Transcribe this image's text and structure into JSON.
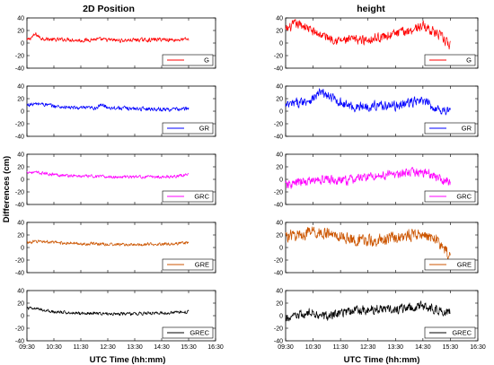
{
  "figure": {
    "columns": [
      "2D Position",
      "height"
    ],
    "ylabel": "Differences (cm)",
    "xlabel": "UTC Time (hh:mm)"
  },
  "chart_data": [
    {
      "type": "line",
      "panel": "2D Position",
      "legend": "G",
      "color": "#ff0000",
      "ylim": [
        -40,
        40
      ],
      "yticks": [
        40,
        20,
        0,
        -20,
        -40
      ],
      "x_ticks": [
        "09:30",
        "10:30",
        "11:30",
        "12:30",
        "13:30",
        "14:30",
        "15:30",
        "16:30"
      ],
      "x_range": [
        "09:30",
        "16:30"
      ],
      "data_range": [
        "09:30",
        "15:30"
      ],
      "approx_mean_cm": 5,
      "approx_amplitude_cm": 5,
      "series": [
        {
          "x": [
            "09:30",
            "09:50",
            "10:00",
            "10:30",
            "11:00",
            "11:30",
            "12:00",
            "12:30",
            "13:00",
            "13:30",
            "14:00",
            "14:30",
            "15:00",
            "15:30"
          ],
          "y": [
            4,
            14,
            8,
            5,
            6,
            4,
            6,
            5,
            4,
            5,
            5,
            6,
            5,
            6
          ]
        }
      ]
    },
    {
      "type": "line",
      "panel": "height",
      "legend": "G",
      "color": "#ff0000",
      "ylim": [
        -40,
        40
      ],
      "yticks": [
        40,
        20,
        0,
        -20,
        -40
      ],
      "x_ticks": [
        "09:30",
        "10:30",
        "11:30",
        "12:30",
        "13:30",
        "14:30",
        "15:30",
        "16:30"
      ],
      "x_range": [
        "09:30",
        "16:30"
      ],
      "data_range": [
        "09:30",
        "15:30"
      ],
      "approx_mean_cm": 10,
      "approx_amplitude_cm": 12,
      "series": [
        {
          "x": [
            "09:30",
            "09:50",
            "10:10",
            "10:30",
            "11:00",
            "11:30",
            "12:00",
            "12:30",
            "13:00",
            "13:30",
            "14:00",
            "14:30",
            "14:50",
            "15:10",
            "15:30"
          ],
          "y": [
            20,
            30,
            28,
            18,
            10,
            4,
            5,
            6,
            10,
            15,
            20,
            28,
            20,
            10,
            -5
          ]
        }
      ]
    },
    {
      "type": "line",
      "panel": "2D Position",
      "legend": "GR",
      "color": "#0000ff",
      "ylim": [
        -40,
        40
      ],
      "yticks": [
        40,
        20,
        0,
        -20,
        -40
      ],
      "x_ticks": [
        "09:30",
        "10:30",
        "11:30",
        "12:30",
        "13:30",
        "14:30",
        "15:30",
        "16:30"
      ],
      "x_range": [
        "09:30",
        "16:30"
      ],
      "data_range": [
        "09:30",
        "15:30"
      ],
      "approx_mean_cm": 5,
      "approx_amplitude_cm": 5,
      "series": [
        {
          "x": [
            "09:30",
            "10:00",
            "10:30",
            "11:00",
            "11:30",
            "12:00",
            "12:20",
            "12:30",
            "13:00",
            "13:30",
            "14:00",
            "14:30",
            "15:00",
            "15:30"
          ],
          "y": [
            10,
            12,
            8,
            6,
            5,
            5,
            10,
            6,
            5,
            4,
            4,
            3,
            3,
            4
          ]
        }
      ]
    },
    {
      "type": "line",
      "panel": "height",
      "legend": "GR",
      "color": "#0000ff",
      "ylim": [
        -40,
        40
      ],
      "yticks": [
        40,
        20,
        0,
        -20,
        -40
      ],
      "x_ticks": [
        "09:30",
        "10:30",
        "11:30",
        "12:30",
        "13:30",
        "14:30",
        "15:30",
        "16:30"
      ],
      "x_range": [
        "09:30",
        "16:30"
      ],
      "data_range": [
        "09:30",
        "15:30"
      ],
      "approx_mean_cm": 12,
      "approx_amplitude_cm": 12,
      "series": [
        {
          "x": [
            "09:30",
            "10:00",
            "10:30",
            "10:45",
            "11:00",
            "11:30",
            "12:00",
            "12:30",
            "13:00",
            "13:30",
            "14:00",
            "14:30",
            "15:00",
            "15:30"
          ],
          "y": [
            8,
            14,
            20,
            30,
            25,
            14,
            6,
            8,
            10,
            8,
            14,
            16,
            4,
            0
          ]
        }
      ]
    },
    {
      "type": "line",
      "panel": "2D Position",
      "legend": "GRC",
      "color": "#ff00ff",
      "ylim": [
        -40,
        40
      ],
      "yticks": [
        40,
        20,
        0,
        -20,
        -40
      ],
      "x_ticks": [
        "09:30",
        "10:30",
        "11:30",
        "12:30",
        "13:30",
        "14:30",
        "15:30",
        "16:30"
      ],
      "x_range": [
        "09:30",
        "16:30"
      ],
      "data_range": [
        "09:30",
        "15:30"
      ],
      "approx_mean_cm": 5,
      "approx_amplitude_cm": 4,
      "series": [
        {
          "x": [
            "09:30",
            "10:00",
            "10:30",
            "11:00",
            "11:30",
            "12:00",
            "12:30",
            "13:00",
            "13:30",
            "14:00",
            "14:30",
            "15:00",
            "15:30"
          ],
          "y": [
            12,
            10,
            8,
            6,
            5,
            5,
            4,
            4,
            4,
            4,
            4,
            5,
            8
          ]
        }
      ]
    },
    {
      "type": "line",
      "panel": "height",
      "legend": "GRC",
      "color": "#ff00ff",
      "ylim": [
        -40,
        40
      ],
      "yticks": [
        40,
        20,
        0,
        -20,
        -40
      ],
      "x_ticks": [
        "09:30",
        "10:30",
        "11:30",
        "12:30",
        "13:30",
        "14:30",
        "15:30",
        "16:30"
      ],
      "x_range": [
        "09:30",
        "16:30"
      ],
      "data_range": [
        "09:30",
        "15:30"
      ],
      "approx_mean_cm": 0,
      "approx_amplitude_cm": 12,
      "series": [
        {
          "x": [
            "09:30",
            "10:00",
            "10:30",
            "11:00",
            "11:30",
            "12:00",
            "12:30",
            "13:00",
            "13:30",
            "14:00",
            "14:30",
            "14:50",
            "15:10",
            "15:30"
          ],
          "y": [
            -10,
            -5,
            -2,
            0,
            -3,
            0,
            5,
            6,
            8,
            10,
            12,
            8,
            0,
            -5
          ]
        }
      ]
    },
    {
      "type": "line",
      "panel": "2D Position",
      "legend": "GRE",
      "color": "#cc5500",
      "ylim": [
        -40,
        40
      ],
      "yticks": [
        40,
        20,
        0,
        -20,
        -40
      ],
      "x_ticks": [
        "09:30",
        "10:30",
        "11:30",
        "12:30",
        "13:30",
        "14:30",
        "15:30",
        "16:30"
      ],
      "x_range": [
        "09:30",
        "16:30"
      ],
      "data_range": [
        "09:30",
        "15:30"
      ],
      "approx_mean_cm": 5,
      "approx_amplitude_cm": 4,
      "series": [
        {
          "x": [
            "09:30",
            "10:00",
            "10:30",
            "11:00",
            "11:30",
            "12:00",
            "12:30",
            "13:00",
            "13:30",
            "14:00",
            "14:30",
            "15:00",
            "15:30"
          ],
          "y": [
            8,
            10,
            8,
            7,
            6,
            6,
            5,
            5,
            4,
            5,
            6,
            6,
            8
          ]
        }
      ]
    },
    {
      "type": "line",
      "panel": "height",
      "legend": "GRE",
      "color": "#cc5500",
      "ylim": [
        -40,
        40
      ],
      "yticks": [
        40,
        20,
        0,
        -20,
        -40
      ],
      "x_ticks": [
        "09:30",
        "10:30",
        "11:30",
        "12:30",
        "13:30",
        "14:30",
        "15:30",
        "16:30"
      ],
      "x_range": [
        "09:30",
        "16:30"
      ],
      "data_range": [
        "09:30",
        "15:30"
      ],
      "approx_mean_cm": 15,
      "approx_amplitude_cm": 15,
      "series": [
        {
          "x": [
            "09:30",
            "10:00",
            "10:30",
            "11:00",
            "11:30",
            "12:00",
            "12:30",
            "13:00",
            "13:30",
            "14:00",
            "14:30",
            "15:00",
            "15:30"
          ],
          "y": [
            18,
            20,
            25,
            22,
            18,
            12,
            10,
            12,
            15,
            20,
            22,
            12,
            -15
          ]
        }
      ]
    },
    {
      "type": "line",
      "panel": "2D Position",
      "legend": "GREC",
      "color": "#000000",
      "ylim": [
        -40,
        40
      ],
      "yticks": [
        40,
        20,
        0,
        -20,
        -40
      ],
      "x_ticks": [
        "09:30",
        "10:30",
        "11:30",
        "12:30",
        "13:30",
        "14:30",
        "15:30",
        "16:30"
      ],
      "x_range": [
        "09:30",
        "16:30"
      ],
      "data_range": [
        "09:30",
        "15:30"
      ],
      "approx_mean_cm": 5,
      "approx_amplitude_cm": 4,
      "series": [
        {
          "x": [
            "09:30",
            "10:00",
            "10:30",
            "11:00",
            "11:30",
            "12:00",
            "12:30",
            "13:00",
            "13:30",
            "14:00",
            "14:30",
            "15:00",
            "15:30"
          ],
          "y": [
            12,
            10,
            6,
            5,
            4,
            4,
            3,
            3,
            3,
            4,
            4,
            5,
            6
          ]
        }
      ]
    },
    {
      "type": "line",
      "panel": "height",
      "legend": "GREC",
      "color": "#000000",
      "ylim": [
        -40,
        40
      ],
      "yticks": [
        40,
        20,
        0,
        -20,
        -40
      ],
      "x_ticks": [
        "09:30",
        "10:30",
        "11:30",
        "12:30",
        "13:30",
        "14:30",
        "15:30",
        "16:30"
      ],
      "x_range": [
        "09:30",
        "16:30"
      ],
      "data_range": [
        "09:30",
        "15:30"
      ],
      "approx_mean_cm": 5,
      "approx_amplitude_cm": 12,
      "series": [
        {
          "x": [
            "09:30",
            "10:00",
            "10:30",
            "11:00",
            "11:30",
            "12:00",
            "12:30",
            "13:00",
            "13:30",
            "14:00",
            "14:30",
            "15:00",
            "15:30"
          ],
          "y": [
            -5,
            0,
            5,
            -2,
            5,
            8,
            10,
            12,
            10,
            12,
            15,
            10,
            5
          ]
        }
      ]
    }
  ]
}
